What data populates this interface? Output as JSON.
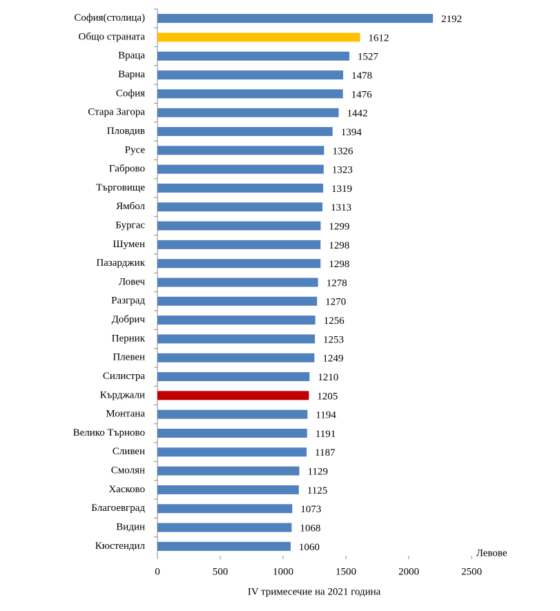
{
  "chart_data": {
    "type": "barh",
    "categories": [
      "София(столица)",
      "Общо страната",
      "Враца",
      "Варна",
      "София",
      "Стара Загора",
      "Пловдив",
      "Русе",
      "Габрово",
      "Търговище",
      "Ямбол",
      "Бургас",
      "Шумен",
      "Пазарджик",
      "Ловеч",
      "Разград",
      "Добрич",
      "Перник",
      "Плевен",
      "Силистра",
      "Кърджали",
      "Монтана",
      "Велико Търново",
      "Сливен",
      "Смолян",
      "Хасково",
      "Благоевград",
      "Видин",
      "Кюстендил"
    ],
    "values": [
      2192,
      1612,
      1527,
      1478,
      1476,
      1442,
      1394,
      1326,
      1323,
      1319,
      1313,
      1299,
      1298,
      1298,
      1278,
      1270,
      1256,
      1253,
      1249,
      1210,
      1205,
      1194,
      1191,
      1187,
      1129,
      1125,
      1073,
      1068,
      1060
    ],
    "colors": [
      "#4f81bd",
      "#ffc000",
      "#4f81bd",
      "#4f81bd",
      "#4f81bd",
      "#4f81bd",
      "#4f81bd",
      "#4f81bd",
      "#4f81bd",
      "#4f81bd",
      "#4f81bd",
      "#4f81bd",
      "#4f81bd",
      "#4f81bd",
      "#4f81bd",
      "#4f81bd",
      "#4f81bd",
      "#4f81bd",
      "#4f81bd",
      "#4f81bd",
      "#c00000",
      "#4f81bd",
      "#4f81bd",
      "#4f81bd",
      "#4f81bd",
      "#4f81bd",
      "#4f81bd",
      "#4f81bd",
      "#4f81bd"
    ],
    "xlim": [
      0,
      2500
    ],
    "xticks": [
      0,
      500,
      1000,
      1500,
      2000,
      2500
    ],
    "x_axis_unit": "Левове",
    "x_axis_label": "IV тримесечие на 2021  година"
  }
}
